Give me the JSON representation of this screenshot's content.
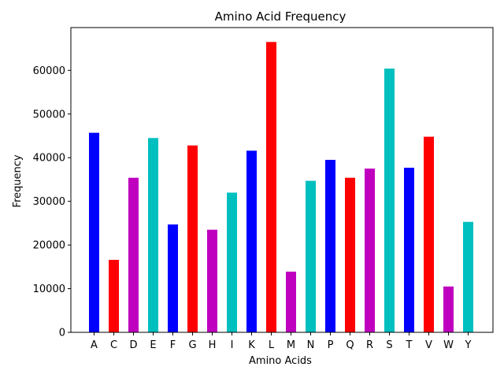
{
  "chart_data": {
    "type": "bar",
    "title": "Amino Acid Frequency",
    "xlabel": "Amino Acids",
    "ylabel": "Frequency",
    "categories": [
      "A",
      "C",
      "D",
      "E",
      "F",
      "G",
      "H",
      "I",
      "K",
      "L",
      "M",
      "N",
      "P",
      "Q",
      "R",
      "S",
      "T",
      "V",
      "W",
      "Y"
    ],
    "values": [
      45700,
      16600,
      35400,
      44500,
      24700,
      42800,
      23500,
      32000,
      41600,
      66500,
      13900,
      34700,
      39500,
      35400,
      37500,
      60400,
      37700,
      44800,
      10500,
      25300
    ],
    "colors": [
      "#0000ff",
      "#ff0000",
      "#bf00bf",
      "#00bfbf",
      "#0000ff",
      "#ff0000",
      "#bf00bf",
      "#00bfbf",
      "#0000ff",
      "#ff0000",
      "#bf00bf",
      "#00bfbf",
      "#0000ff",
      "#ff0000",
      "#bf00bf",
      "#00bfbf",
      "#0000ff",
      "#ff0000",
      "#bf00bf",
      "#00bfbf"
    ],
    "ylim": [
      0,
      69800
    ],
    "yticks": [
      0,
      10000,
      20000,
      30000,
      40000,
      50000,
      60000
    ],
    "grid": false,
    "legend": "none"
  }
}
